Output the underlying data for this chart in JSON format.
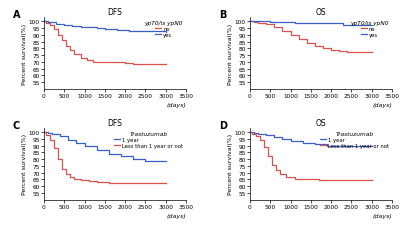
{
  "panels": [
    {
      "label": "A",
      "title": "DFS",
      "legend_title": "ypT0/is ypN0",
      "legend_entries": [
        "no",
        "yes"
      ],
      "ylabel": "Percent survival(%)",
      "xlabel": "(days)",
      "xlim": [
        0,
        3500
      ],
      "ylim": [
        50,
        103
      ],
      "yticks": [
        55,
        60,
        65,
        70,
        75,
        80,
        85,
        90,
        95,
        100
      ],
      "xticks": [
        0,
        500,
        1000,
        1500,
        2000,
        2500,
        3000,
        3500
      ],
      "curves": [
        {
          "color": "#d9534a",
          "label": "no",
          "x": [
            0,
            50,
            150,
            250,
            350,
            450,
            550,
            650,
            750,
            900,
            1050,
            1200,
            1400,
            1600,
            1800,
            2000,
            2200,
            2400,
            2700,
            3000
          ],
          "y": [
            100,
            99,
            97,
            94,
            90,
            86,
            82,
            79,
            76,
            73,
            71,
            70,
            70,
            70,
            69.5,
            69,
            68.5,
            68.5,
            68.5,
            68
          ]
        },
        {
          "color": "#3a5fcd",
          "label": "yes",
          "x": [
            0,
            100,
            300,
            500,
            700,
            900,
            1100,
            1300,
            1500,
            1800,
            2100,
            2400,
            2700,
            3000
          ],
          "y": [
            100,
            99.5,
            98,
            97,
            96.5,
            96,
            95.5,
            95,
            94.5,
            93.5,
            93,
            92.5,
            92.5,
            92
          ]
        }
      ]
    },
    {
      "label": "B",
      "title": "OS",
      "legend_title": "ypT0/is ypN0",
      "legend_entries": [
        "no",
        "yes"
      ],
      "ylabel": "Percent survival(%)",
      "xlabel": "(days)",
      "xlim": [
        0,
        3500
      ],
      "ylim": [
        50,
        103
      ],
      "yticks": [
        55,
        60,
        65,
        70,
        75,
        80,
        85,
        90,
        95,
        100
      ],
      "xticks": [
        0,
        500,
        1000,
        1500,
        2000,
        2500,
        3000,
        3500
      ],
      "curves": [
        {
          "color": "#d9534a",
          "label": "no",
          "x": [
            0,
            100,
            200,
            400,
            600,
            800,
            1000,
            1200,
            1400,
            1600,
            1800,
            2000,
            2100,
            2200,
            2400,
            2700,
            3000
          ],
          "y": [
            100,
            99.5,
            99,
            98,
            96,
            93,
            90,
            87,
            84,
            82,
            80,
            79,
            78.5,
            78,
            77.5,
            77,
            77
          ]
        },
        {
          "color": "#3a5fcd",
          "label": "yes",
          "x": [
            0,
            200,
            500,
            800,
            1100,
            1500,
            1900,
            2300,
            2700,
            3000
          ],
          "y": [
            100,
            100,
            99.5,
            99.5,
            99,
            98.5,
            98.5,
            97.5,
            97.5,
            97.5
          ]
        }
      ]
    },
    {
      "label": "C",
      "title": "DFS",
      "legend_title": "Trastuzumab",
      "legend_entries": [
        "1 year",
        "Less than 1 year or not"
      ],
      "ylabel": "Percent survival(%)",
      "xlabel": "(days)",
      "xlim": [
        0,
        3500
      ],
      "ylim": [
        50,
        103
      ],
      "yticks": [
        55,
        60,
        65,
        70,
        75,
        80,
        85,
        90,
        95,
        100
      ],
      "xticks": [
        0,
        500,
        1000,
        1500,
        2000,
        2500,
        3000,
        3500
      ],
      "curves": [
        {
          "color": "#3a5fcd",
          "label": "1 year",
          "x": [
            0,
            100,
            200,
            400,
            600,
            800,
            1000,
            1300,
            1600,
            1900,
            2200,
            2500,
            2800,
            3000
          ],
          "y": [
            100,
            99.5,
            99,
            97,
            94,
            92,
            90,
            87,
            84,
            82,
            80,
            79,
            79,
            78.5
          ]
        },
        {
          "color": "#d9534a",
          "label": "Less than 1 year or not",
          "x": [
            0,
            50,
            150,
            250,
            350,
            450,
            550,
            650,
            750,
            900,
            1100,
            1300,
            1600,
            1900,
            2200,
            2500,
            2800,
            3000
          ],
          "y": [
            100,
            98,
            94,
            88,
            80,
            73,
            69,
            66.5,
            65,
            64.5,
            63.5,
            63,
            62.5,
            62.5,
            62.5,
            62,
            62,
            62
          ]
        }
      ]
    },
    {
      "label": "D",
      "title": "OS",
      "legend_title": "Trastuzumab",
      "legend_entries": [
        "1 year",
        "Less than 1 year or not"
      ],
      "ylabel": "Percent survival(%)",
      "xlabel": "(days)",
      "xlim": [
        0,
        3500
      ],
      "ylim": [
        50,
        103
      ],
      "yticks": [
        55,
        60,
        65,
        70,
        75,
        80,
        85,
        90,
        95,
        100
      ],
      "xticks": [
        0,
        500,
        1000,
        1500,
        2000,
        2500,
        3000,
        3500
      ],
      "curves": [
        {
          "color": "#3a5fcd",
          "label": "1 year",
          "x": [
            0,
            100,
            200,
            400,
            600,
            800,
            1000,
            1300,
            1600,
            1900,
            2200,
            2500,
            2800,
            3000
          ],
          "y": [
            100,
            99.5,
            99,
            98,
            96.5,
            95,
            93.5,
            92,
            91,
            90,
            90,
            89.5,
            89.5,
            89.5
          ]
        },
        {
          "color": "#d9534a",
          "label": "Less than 1 year or not",
          "x": [
            0,
            50,
            150,
            250,
            350,
            450,
            550,
            650,
            750,
            900,
            1100,
            1400,
            1700,
            2000,
            2300,
            2600,
            3000
          ],
          "y": [
            100,
            99,
            97,
            94,
            89,
            82,
            76,
            72,
            69,
            67,
            65.5,
            65,
            64.5,
            64.5,
            64.5,
            64.5,
            64.5
          ]
        }
      ]
    }
  ],
  "figure_bg": "#ffffff",
  "axes_bg": "#ffffff",
  "tick_fontsize": 4.2,
  "label_fontsize": 4.5,
  "title_fontsize": 5.5,
  "legend_fontsize": 3.8,
  "legend_title_fontsize": 4.2,
  "line_width": 0.9,
  "panel_label_fontsize": 7
}
